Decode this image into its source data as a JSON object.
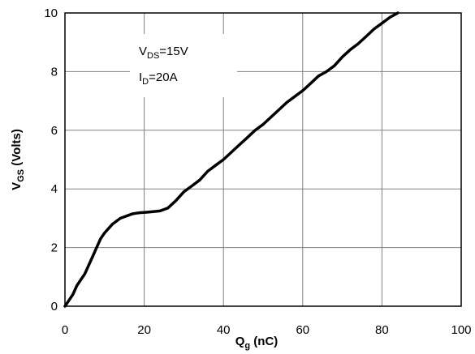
{
  "chart_data": {
    "type": "line",
    "title": "",
    "xlabel": {
      "main": "Q",
      "sub": "g",
      "unit": " (nC)"
    },
    "ylabel": {
      "main": "V",
      "sub": "GS",
      "unit": " (Volts)"
    },
    "xlim": [
      0,
      100
    ],
    "ylim": [
      0,
      10
    ],
    "xticks": [
      "0",
      "20",
      "40",
      "60",
      "80",
      "100"
    ],
    "yticks": [
      "0",
      "2",
      "4",
      "6",
      "8",
      "10"
    ],
    "grid": true,
    "annotations": [
      {
        "main": "V",
        "sub": "DS",
        "rest": "=15V"
      },
      {
        "main": "I",
        "sub": "D",
        "rest": "=20A"
      }
    ],
    "series": [
      {
        "color": "#000000",
        "x": [
          0,
          1,
          2,
          3,
          4,
          5,
          6,
          7,
          8,
          9,
          10,
          11,
          12,
          13,
          14,
          15,
          16,
          17,
          18,
          19,
          20,
          22,
          24,
          26,
          28,
          30,
          32,
          34,
          36,
          38,
          40,
          42,
          44,
          46,
          48,
          50,
          52,
          54,
          56,
          58,
          60,
          62,
          64,
          66,
          68,
          70,
          72,
          74,
          76,
          78,
          80,
          82,
          84
        ],
        "y": [
          0,
          0.2,
          0.4,
          0.7,
          0.9,
          1.1,
          1.4,
          1.7,
          2.0,
          2.3,
          2.5,
          2.65,
          2.8,
          2.9,
          3.0,
          3.05,
          3.1,
          3.15,
          3.17,
          3.19,
          3.2,
          3.22,
          3.25,
          3.35,
          3.6,
          3.9,
          4.1,
          4.3,
          4.6,
          4.8,
          5.0,
          5.25,
          5.5,
          5.75,
          6.0,
          6.2,
          6.45,
          6.7,
          6.95,
          7.15,
          7.35,
          7.6,
          7.85,
          8.0,
          8.2,
          8.5,
          8.75,
          8.95,
          9.2,
          9.45,
          9.65,
          9.85,
          10.0
        ]
      }
    ]
  }
}
